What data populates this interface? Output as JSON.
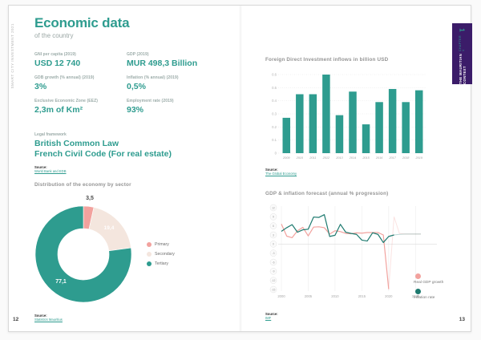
{
  "document": {
    "side_text": "SMART CITY INVESTMENT 2021",
    "left_page_number": "12",
    "right_page_number": "13",
    "chapter_tab": {
      "number": "1",
      "chapter": "CHAPTER 1",
      "title": "THE MAURITIAN CONTEXT"
    }
  },
  "header": {
    "title": "Economic data",
    "subtitle": "of the country"
  },
  "stats": [
    {
      "label": "GNI per capita (2019)",
      "value": "USD 12 740"
    },
    {
      "label": "GDP (2019)",
      "value": "MUR 498,3 Billion"
    },
    {
      "label": "GDB growth (% annual) (2019)",
      "value": "3%"
    },
    {
      "label": "Inflation (% annual) (2019)",
      "value": "0,5%"
    },
    {
      "label": "Exclusive Economic Zone (EEZ)",
      "value": "2,3m of Km²"
    },
    {
      "label": "Employment rate (2019)",
      "value": "93%"
    }
  ],
  "legal": {
    "label": "Legal framework",
    "line1": "British Common Law",
    "line2": "French Civil Code (For real estate)"
  },
  "sources": {
    "stats": {
      "label": "Source:",
      "link": "World Bank and EDB"
    },
    "donut": {
      "label": "Source:",
      "link": "Statistics Mauritius"
    },
    "bar": {
      "label": "Source:",
      "link": "The Global Economy"
    },
    "line": {
      "label": "Source:",
      "link": "IMF"
    }
  },
  "colors": {
    "teal": "#2E9C8F",
    "dark_teal": "#1E7A6F",
    "pink": "#F2A29E",
    "cream": "#F4E6DE",
    "purple": "#3B1C69",
    "label_gray": "#9BABA8"
  },
  "chart_data": [
    {
      "type": "pie",
      "title": "Distribution of the economy by sector",
      "labels": [
        "Primary",
        "Secondary",
        "Tertiary"
      ],
      "values": [
        3.5,
        19.4,
        77.1
      ],
      "value_labels": [
        "3,5",
        "19,4",
        "77,1"
      ],
      "colors": [
        "#F2A29E",
        "#F4E6DE",
        "#2E9C8F"
      ],
      "legend_position": "right"
    },
    {
      "type": "bar",
      "title": "Foreign Direct Investment inflows in billion USD",
      "categories": [
        "2009",
        "2010",
        "2011",
        "2012",
        "2013",
        "2014",
        "2015",
        "2016",
        "2017",
        "2018",
        "2019"
      ],
      "values": [
        0.27,
        0.45,
        0.45,
        0.6,
        0.29,
        0.47,
        0.22,
        0.39,
        0.49,
        0.39,
        0.48
      ],
      "ylim": [
        0,
        0.6
      ],
      "yticks": [
        0,
        0.1,
        0.2,
        0.3,
        0.4,
        0.5,
        0.6
      ],
      "bar_color": "#2E9C8F",
      "grid": true
    },
    {
      "type": "line",
      "title": "GDP & inflation forecast (annual % progression)",
      "x": [
        2000,
        2001,
        2002,
        2003,
        2004,
        2005,
        2006,
        2007,
        2008,
        2009,
        2010,
        2011,
        2012,
        2013,
        2014,
        2015,
        2016,
        2017,
        2018,
        2019,
        2020,
        2021,
        2022,
        2023,
        2024,
        2025,
        2026
      ],
      "series": [
        {
          "name": "Real GDP growth",
          "color": "#F2A29E",
          "forecast_from": 2020,
          "values": [
            6.6,
            2.6,
            2.1,
            4.4,
            5.5,
            2.7,
            5.6,
            5.7,
            5.4,
            3.3,
            4.4,
            4.1,
            3.5,
            3.4,
            3.7,
            3.6,
            3.8,
            3.8,
            3.8,
            3.0,
            -14.9,
            9.0,
            3.5,
            3.3,
            3.3,
            3.3,
            3.3
          ]
        },
        {
          "name": "Inflation rate",
          "color": "#1E7A6F",
          "forecast_from": 2021,
          "values": [
            4.2,
            5.4,
            6.4,
            3.9,
            4.7,
            4.9,
            8.9,
            8.8,
            9.7,
            2.5,
            2.9,
            6.5,
            3.9,
            3.5,
            3.2,
            1.3,
            1.0,
            3.7,
            3.2,
            0.5,
            2.5,
            3.0,
            3.2,
            3.3,
            3.3,
            3.3,
            3.3
          ]
        }
      ],
      "ylim": [
        -15,
        12
      ],
      "yticks": [
        12,
        9,
        6,
        3,
        0,
        -3,
        -6,
        -9,
        -12,
        -15
      ],
      "xticks": [
        2000,
        2005,
        2010,
        2015,
        2020,
        2025
      ],
      "legend_position": "right-bottom",
      "grid": true
    }
  ]
}
